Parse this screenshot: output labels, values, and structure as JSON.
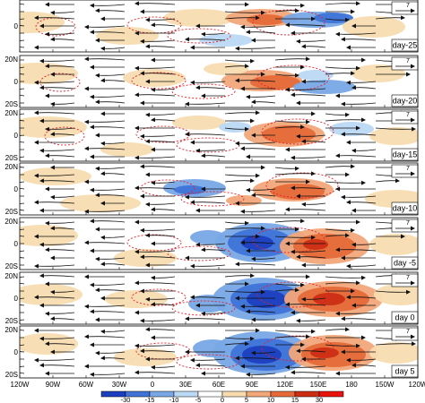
{
  "figure": {
    "panels": [
      {
        "label": "day-25",
        "refvec": "7",
        "lat_labels": [
          "",
          "0",
          ""
        ]
      },
      {
        "label": "day-20",
        "refvec": "7",
        "lat_labels": [
          "20N",
          "0",
          "20S"
        ]
      },
      {
        "label": "day-15",
        "refvec": "7",
        "lat_labels": [
          "20N",
          "0",
          "20S"
        ]
      },
      {
        "label": "day-10",
        "refvec": "7",
        "lat_labels": [
          "20N",
          "0",
          "20S"
        ]
      },
      {
        "label": "day -5",
        "refvec": "7",
        "lat_labels": [
          "20N",
          "0",
          "20S"
        ]
      },
      {
        "label": "day  0",
        "refvec": "7",
        "lat_labels": [
          "20N",
          "0",
          "20S"
        ]
      },
      {
        "label": "day  5",
        "refvec": "7",
        "lat_labels": [
          "20N",
          "0",
          "20S"
        ]
      }
    ],
    "lon_labels": [
      "120W",
      "90W",
      "60W",
      "30W",
      "0",
      "30E",
      "60E",
      "90E",
      "120E",
      "150E",
      "180",
      "150W",
      "120W"
    ],
    "colorbar": {
      "labels": [
        "-30",
        "-15",
        "-10",
        "-5",
        "0",
        "5",
        "10",
        "15",
        "30"
      ],
      "colors": [
        "#1c3fbf",
        "#3f73d8",
        "#78a8e6",
        "#bcd8f4",
        "#ffffff",
        "#f8dcb0",
        "#f2a67a",
        "#e56a38",
        "#cc2e14",
        "#e8140c"
      ]
    },
    "colors": {
      "neg_dark": "#1c3fbf",
      "neg_mid": "#3f73d8",
      "neg_light": "#78a8e6",
      "neg_pale": "#bcd8f4",
      "pos_pale": "#f8dcb0",
      "pos_light": "#f2a67a",
      "pos_mid": "#e56a38",
      "pos_dark": "#cc2e14",
      "contour": "#e8202a",
      "streamline": "#111111"
    }
  }
}
